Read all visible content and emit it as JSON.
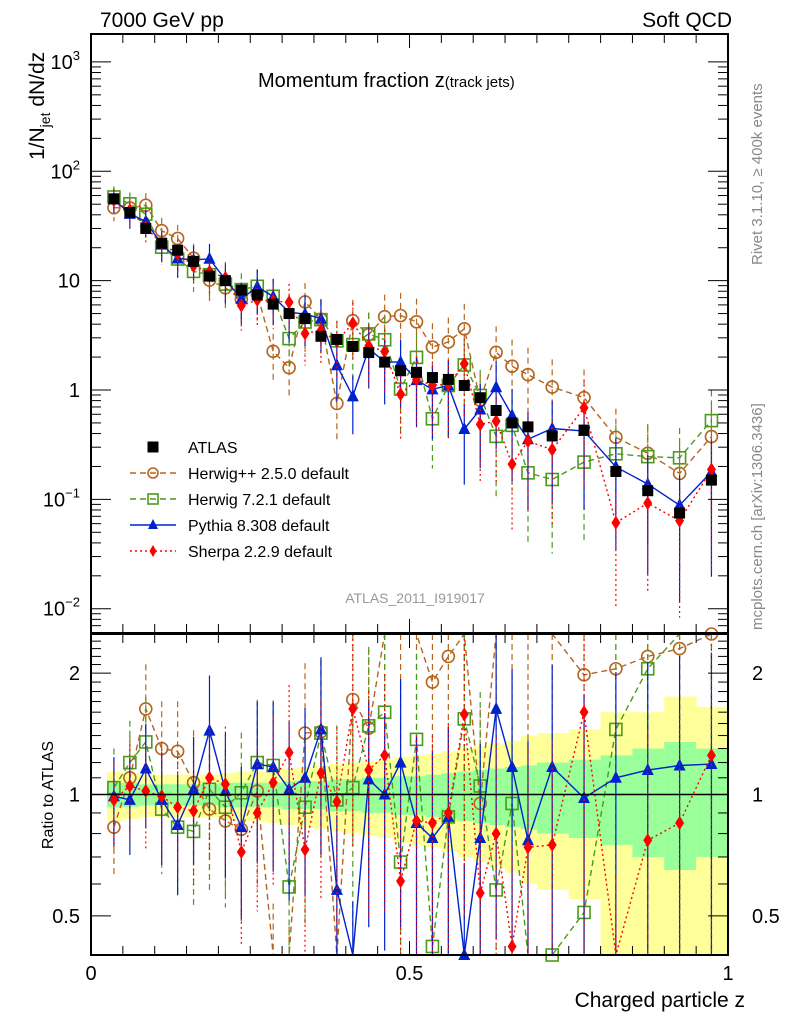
{
  "header": {
    "left": "7000 GeV pp",
    "right": "Soft QCD",
    "title_main": "Momentum fraction z",
    "title_sub": "(track jets)",
    "side_top": "Rivet 3.1.10, ≥ 400k events",
    "side_bottom": "mcplots.cern.ch [arXiv:1306.3436]",
    "watermark": "ATLAS_2011_I919017"
  },
  "chart_data": [
    {
      "type": "scatter",
      "panel": "main",
      "title": "Momentum fraction z (track jets)",
      "xlabel": "Charged particle z",
      "ylabel": "1/N_jet dN/dz",
      "xlim": [
        0,
        1
      ],
      "ylim": [
        0.006,
        1800
      ],
      "yscale": "log",
      "yticks": [
        {
          "v": 0.01,
          "base": "10",
          "exp": "−2"
        },
        {
          "v": 0.1,
          "base": "10",
          "exp": "−1"
        },
        {
          "v": 1,
          "base": "1",
          "exp": ""
        },
        {
          "v": 10,
          "base": "10",
          "exp": ""
        },
        {
          "v": 100,
          "base": "10",
          "exp": "2"
        },
        {
          "v": 1000,
          "base": "10",
          "exp": "3"
        }
      ],
      "xticks": [
        "0",
        "0.5",
        "1"
      ],
      "xtick_values": [
        0,
        0.5,
        1
      ],
      "x": [
        0.036,
        0.061,
        0.086,
        0.111,
        0.136,
        0.161,
        0.186,
        0.211,
        0.236,
        0.261,
        0.286,
        0.311,
        0.336,
        0.361,
        0.386,
        0.411,
        0.436,
        0.461,
        0.486,
        0.511,
        0.536,
        0.561,
        0.586,
        0.611,
        0.636,
        0.661,
        0.686,
        0.724,
        0.774,
        0.824,
        0.874,
        0.924,
        0.974
      ],
      "legend": {
        "placement": "center-left"
      },
      "series": [
        {
          "name": "ATLAS",
          "color": "#000000",
          "marker": "square-filled",
          "line": "none",
          "values": [
            56,
            42,
            30,
            22,
            19,
            15,
            11,
            10,
            8.2,
            7.4,
            6.1,
            5.0,
            4.5,
            3.1,
            2.9,
            2.5,
            2.2,
            1.8,
            1.5,
            1.45,
            1.3,
            1.25,
            1.1,
            0.85,
            0.65,
            0.5,
            0.46,
            0.38,
            0.43,
            0.18,
            0.12,
            0.075,
            0.15
          ]
        },
        {
          "name": "Herwig++ 2.5.0 default",
          "color": "#b5651d",
          "marker": "circle-open",
          "line": "dashed",
          "ratio": [
            0.83,
            1.1,
            1.63,
            1.3,
            1.28,
            1.07,
            0.92,
            0.86,
            0.82,
            1.02,
            0.37,
            0.32,
            1.42,
            1.43,
            0.26,
            1.72,
            1.46,
            2.6,
            3.2,
            2.9,
            1.9,
            2.2,
            3.3,
            0.95,
            3.4,
            3.3,
            3.0,
            2.8,
            1.98,
            2.05,
            2.2,
            2.3,
            2.5
          ]
        },
        {
          "name": "Herwig 7.2.1 default",
          "color": "#4b9a1a",
          "marker": "square-open",
          "line": "dashed",
          "ratio": [
            1.04,
            1.2,
            1.35,
            0.92,
            0.83,
            0.81,
            1.03,
            0.93,
            1.01,
            1.2,
            1.18,
            0.59,
            0.93,
            1.42,
            0.97,
            1.04,
            1.48,
            1.6,
            0.68,
            1.37,
            0.42,
            0.88,
            1.54,
            1.05,
            0.58,
            0.95,
            0.38,
            0.4,
            0.51,
            1.45,
            2.05,
            3.2,
            3.5
          ]
        },
        {
          "name": "Pythia 8.308 default",
          "color": "#0022cc",
          "marker": "triangle-filled",
          "line": "solid",
          "ratio": [
            0.99,
            0.97,
            1.16,
            0.97,
            0.84,
            1.03,
            1.44,
            1.02,
            0.83,
            1.19,
            1.17,
            1.03,
            1.1,
            1.45,
            0.58,
            0.35,
            1.09,
            1.0,
            1.2,
            0.85,
            0.78,
            0.88,
            0.4,
            0.78,
            1.63,
            1.17,
            0.77,
            1.17,
            0.98,
            1.1,
            1.15,
            1.18,
            1.19
          ]
        },
        {
          "name": "Sherpa 2.2.9 default",
          "color": "#ff0000",
          "marker": "diamond-filled",
          "line": "dotted",
          "ratio": [
            0.97,
            1.05,
            1.02,
            0.99,
            0.93,
            0.91,
            1.1,
            1.06,
            0.72,
            0.9,
            1.07,
            1.27,
            0.73,
            1.13,
            0.96,
            1.63,
            1.15,
            1.25,
            0.61,
            0.86,
            0.85,
            0.9,
            1.58,
            0.57,
            0.8,
            0.42,
            0.74,
            0.75,
            1.6,
            0.34,
            0.77,
            0.85,
            1.25
          ]
        }
      ]
    },
    {
      "type": "scatter",
      "panel": "ratio",
      "xlabel": "Charged particle z",
      "ylabel": "Ratio to ATLAS",
      "xlim": [
        0,
        1
      ],
      "ylim": [
        0.4,
        2.5
      ],
      "yscale": "log",
      "yticks": [
        {
          "v": 0.5,
          "label": "0.5"
        },
        {
          "v": 1,
          "label": "1"
        },
        {
          "v": 2,
          "label": "2"
        }
      ],
      "band_edges": [
        0.025,
        0.05,
        0.075,
        0.1,
        0.125,
        0.15,
        0.175,
        0.2,
        0.225,
        0.25,
        0.275,
        0.3,
        0.325,
        0.35,
        0.375,
        0.4,
        0.425,
        0.45,
        0.475,
        0.5,
        0.525,
        0.55,
        0.575,
        0.6,
        0.625,
        0.65,
        0.675,
        0.7,
        0.75,
        0.8,
        0.85,
        0.9,
        0.95,
        1.0
      ],
      "stat_band": [
        0.07,
        0.07,
        0.06,
        0.06,
        0.06,
        0.06,
        0.06,
        0.07,
        0.07,
        0.07,
        0.07,
        0.08,
        0.08,
        0.08,
        0.09,
        0.09,
        0.1,
        0.1,
        0.11,
        0.11,
        0.12,
        0.13,
        0.14,
        0.15,
        0.16,
        0.17,
        0.18,
        0.2,
        0.22,
        0.25,
        0.3,
        0.35,
        0.3
      ],
      "total_band": [
        0.14,
        0.13,
        0.12,
        0.12,
        0.12,
        0.12,
        0.12,
        0.13,
        0.14,
        0.14,
        0.15,
        0.16,
        0.17,
        0.18,
        0.19,
        0.2,
        0.21,
        0.22,
        0.24,
        0.25,
        0.26,
        0.28,
        0.3,
        0.32,
        0.34,
        0.36,
        0.4,
        0.42,
        0.45,
        0.6,
        0.6,
        0.75,
        0.65
      ],
      "band_colors": {
        "stat": "#99ff99",
        "total": "#ffff99"
      }
    }
  ]
}
